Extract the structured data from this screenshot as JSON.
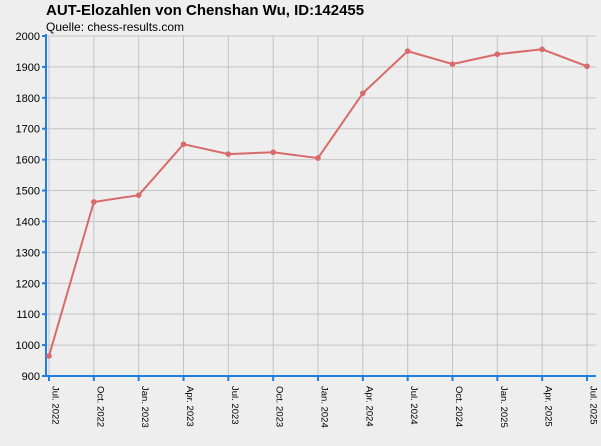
{
  "chart_data": {
    "type": "line",
    "title": "AUT-Elozahlen von Chenshan Wu, ID:142455",
    "subtitle": "Quelle: chess-results.com",
    "xlabel": "",
    "ylabel": "",
    "categories": [
      "Jul. 2022",
      "Oct. 2022",
      "Jan. 2023",
      "Apr. 2023",
      "Jul. 2023",
      "Oct. 2023",
      "Jan. 2024",
      "Apr. 2024",
      "Jul. 2024",
      "Oct. 2024",
      "Jan. 2025",
      "Apr. 2025",
      "Jul. 2025"
    ],
    "values": [
      965,
      1463,
      1485,
      1650,
      1618,
      1624,
      1605,
      1815,
      1951,
      1909,
      1941,
      1957,
      1902
    ],
    "ylim": [
      900,
      2000
    ],
    "yticks": [
      900,
      1000,
      1100,
      1200,
      1300,
      1400,
      1500,
      1600,
      1700,
      1800,
      1900,
      2000
    ],
    "grid": true,
    "colors": {
      "line": "#d96a6a",
      "grid": "#c4c4c4",
      "axis": "#1e7fe0",
      "background": "#eeeeee"
    }
  }
}
